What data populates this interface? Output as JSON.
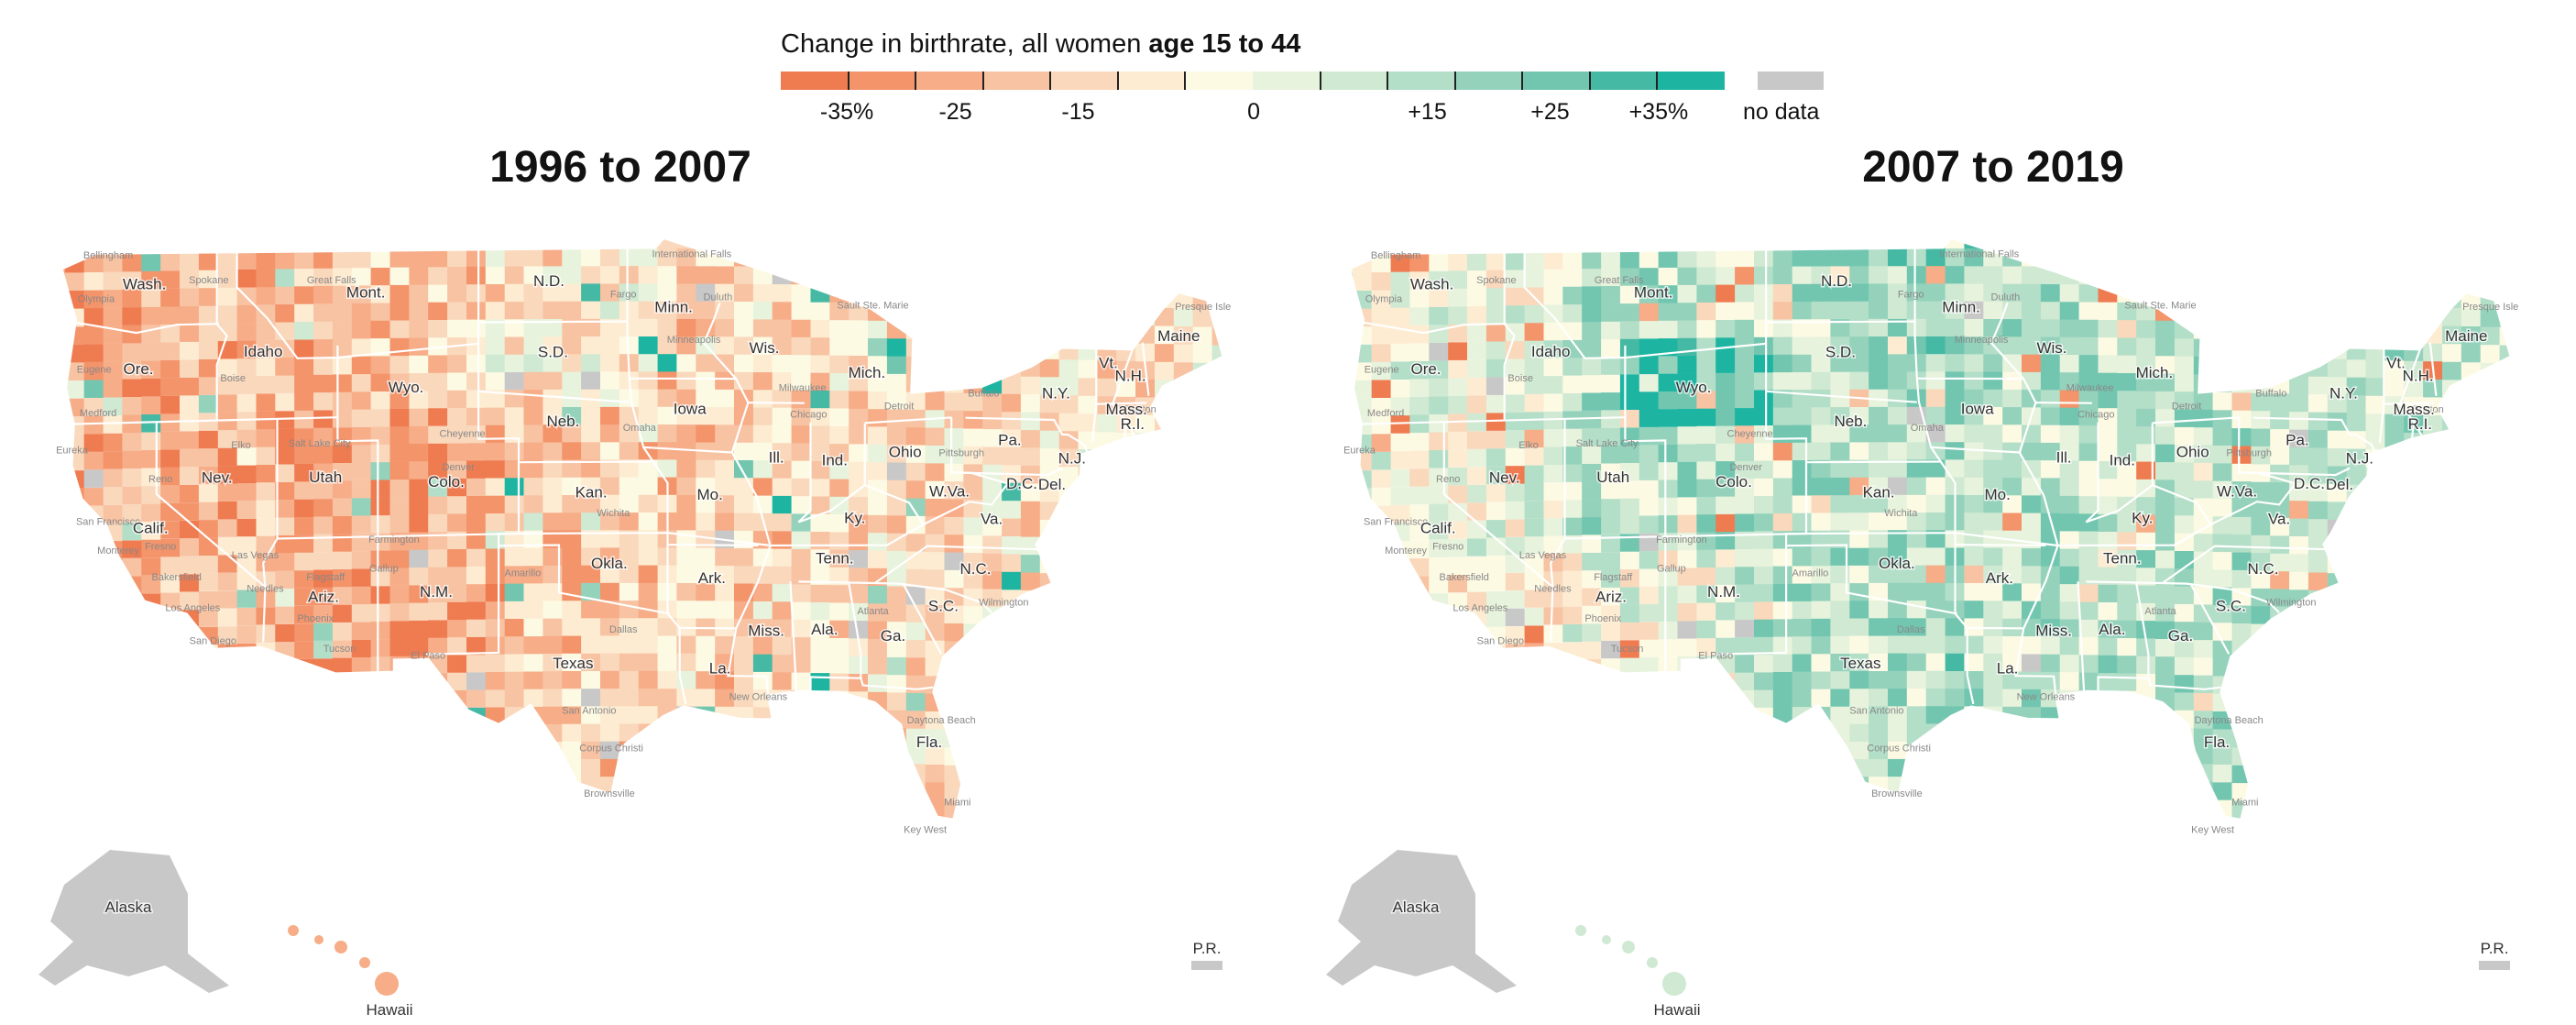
{
  "legend": {
    "title_prefix": "Change in birthrate, all women ",
    "title_bold": "age 15 to 44",
    "colors": [
      "#ef7b51",
      "#f3946b",
      "#f6ad88",
      "#f8c3a3",
      "#fad8bc",
      "#fdecd2",
      "#fdfae4",
      "#e7f3dc",
      "#cfe9d2",
      "#b3dec8",
      "#94d2bc",
      "#72c6b0",
      "#46b9a4",
      "#1db5a2"
    ],
    "tick_labels": [
      {
        "text": "-35%",
        "pos": 0.07
      },
      {
        "text": "-25",
        "pos": 0.185
      },
      {
        "text": "-15",
        "pos": 0.315
      },
      {
        "text": "0",
        "pos": 0.501
      },
      {
        "text": "+15",
        "pos": 0.685
      },
      {
        "text": "+25",
        "pos": 0.815
      },
      {
        "text": "+35%",
        "pos": 0.93
      }
    ],
    "nodata_label": "no data",
    "nodata_color": "#c8c8c8"
  },
  "panels": [
    {
      "title": "1996 to 2007",
      "color_bias": -1
    },
    {
      "title": "2007 to 2019",
      "color_bias": 1
    }
  ],
  "state_labels": [
    {
      "text": "Wash.",
      "lon": -120.6,
      "lat": 47.5
    },
    {
      "text": "Ore.",
      "lon": -120.9,
      "lat": 44.0
    },
    {
      "text": "Calif.",
      "lon": -120.3,
      "lat": 37.4
    },
    {
      "text": "Nev.",
      "lon": -117.0,
      "lat": 39.4
    },
    {
      "text": "Idaho",
      "lon": -114.7,
      "lat": 44.6
    },
    {
      "text": "Mont.",
      "lon": -109.6,
      "lat": 47.0
    },
    {
      "text": "Wyo.",
      "lon": -107.6,
      "lat": 43.0
    },
    {
      "text": "Utah",
      "lon": -111.6,
      "lat": 39.3
    },
    {
      "text": "Colo.",
      "lon": -105.6,
      "lat": 39.0
    },
    {
      "text": "Ariz.",
      "lon": -111.7,
      "lat": 34.3
    },
    {
      "text": "N.M.",
      "lon": -106.1,
      "lat": 34.4
    },
    {
      "text": "N.D.",
      "lon": -100.5,
      "lat": 47.4
    },
    {
      "text": "S.D.",
      "lon": -100.3,
      "lat": 44.4
    },
    {
      "text": "Neb.",
      "lon": -99.8,
      "lat": 41.5
    },
    {
      "text": "Kan.",
      "lon": -98.4,
      "lat": 38.5
    },
    {
      "text": "Okla.",
      "lon": -97.5,
      "lat": 35.5
    },
    {
      "text": "Texas",
      "lon": -99.3,
      "lat": 31.3
    },
    {
      "text": "Minn.",
      "lon": -94.3,
      "lat": 46.3
    },
    {
      "text": "Iowa",
      "lon": -93.5,
      "lat": 42.0
    },
    {
      "text": "Mo.",
      "lon": -92.5,
      "lat": 38.4
    },
    {
      "text": "Ark.",
      "lon": -92.4,
      "lat": 34.9
    },
    {
      "text": "La.",
      "lon": -92.0,
      "lat": 31.1
    },
    {
      "text": "Wis.",
      "lon": -89.8,
      "lat": 44.6
    },
    {
      "text": "Ill.",
      "lon": -89.2,
      "lat": 40.0
    },
    {
      "text": "Miss.",
      "lon": -89.7,
      "lat": 32.7
    },
    {
      "text": "Mich.",
      "lon": -84.7,
      "lat": 43.6
    },
    {
      "text": "Ind.",
      "lon": -86.3,
      "lat": 39.9
    },
    {
      "text": "Ky.",
      "lon": -85.3,
      "lat": 37.5
    },
    {
      "text": "Tenn.",
      "lon": -86.3,
      "lat": 35.8
    },
    {
      "text": "Ala.",
      "lon": -86.8,
      "lat": 32.8
    },
    {
      "text": "Ohio",
      "lon": -82.8,
      "lat": 40.3
    },
    {
      "text": "Ga.",
      "lon": -83.4,
      "lat": 32.6
    },
    {
      "text": "Fla.",
      "lon": -81.6,
      "lat": 28.2
    },
    {
      "text": "W.Va.",
      "lon": -80.6,
      "lat": 38.7
    },
    {
      "text": "Va.",
      "lon": -78.5,
      "lat": 37.6
    },
    {
      "text": "N.C.",
      "lon": -79.3,
      "lat": 35.5
    },
    {
      "text": "S.C.",
      "lon": -80.9,
      "lat": 33.9
    },
    {
      "text": "Pa.",
      "lon": -77.6,
      "lat": 40.9
    },
    {
      "text": "N.Y.",
      "lon": -75.3,
      "lat": 42.9
    },
    {
      "text": "Vt.",
      "lon": -72.7,
      "lat": 44.2
    },
    {
      "text": "N.H.",
      "lon": -71.6,
      "lat": 43.7
    },
    {
      "text": "Maine",
      "lon": -69.2,
      "lat": 45.4
    },
    {
      "text": "Mass.",
      "lon": -71.8,
      "lat": 42.3
    },
    {
      "text": "R.I.",
      "lon": -71.5,
      "lat": 41.7
    },
    {
      "text": "N.J.",
      "lon": -74.5,
      "lat": 40.2
    },
    {
      "text": "D.C.",
      "lon": -77.0,
      "lat": 39.1
    },
    {
      "text": "Del.",
      "lon": -75.5,
      "lat": 39.1
    }
  ],
  "inset_labels": {
    "alaska": "Alaska",
    "hawaii": "Hawaii",
    "pr": "P.R."
  },
  "city_labels": [
    {
      "text": "Bellingham",
      "lon": -122.4,
      "lat": 48.8
    },
    {
      "text": "Olympia",
      "lon": -123.0,
      "lat": 47.0
    },
    {
      "text": "Spokane",
      "lon": -117.4,
      "lat": 47.7
    },
    {
      "text": "Great Falls",
      "lon": -111.3,
      "lat": 47.6
    },
    {
      "text": "International Falls",
      "lon": -93.4,
      "lat": 48.6
    },
    {
      "text": "Fargo",
      "lon": -96.8,
      "lat": 46.9
    },
    {
      "text": "Duluth",
      "lon": -92.1,
      "lat": 46.8
    },
    {
      "text": "Sault Ste. Marie",
      "lon": -84.4,
      "lat": 46.5
    },
    {
      "text": "Presque Isle",
      "lon": -68.0,
      "lat": 46.7
    },
    {
      "text": "Eugene",
      "lon": -123.1,
      "lat": 44.1
    },
    {
      "text": "Medford",
      "lon": -122.9,
      "lat": 42.3
    },
    {
      "text": "Boise",
      "lon": -116.2,
      "lat": 43.6
    },
    {
      "text": "Eureka",
      "lon": -124.2,
      "lat": 40.8
    },
    {
      "text": "Reno",
      "lon": -119.8,
      "lat": 39.5
    },
    {
      "text": "Elko",
      "lon": -115.8,
      "lat": 40.8
    },
    {
      "text": "Salt Lake City",
      "lon": -111.9,
      "lat": 40.8
    },
    {
      "text": "Cheyenne",
      "lon": -104.8,
      "lat": 41.1
    },
    {
      "text": "Denver",
      "lon": -105.0,
      "lat": 39.7
    },
    {
      "text": "Omaha",
      "lon": -96.0,
      "lat": 41.3
    },
    {
      "text": "Minneapolis",
      "lon": -93.3,
      "lat": 45.0
    },
    {
      "text": "Milwaukee",
      "lon": -87.9,
      "lat": 43.0
    },
    {
      "text": "Chicago",
      "lon": -87.6,
      "lat": 41.9
    },
    {
      "text": "Detroit",
      "lon": -83.1,
      "lat": 42.3
    },
    {
      "text": "Buffalo",
      "lon": -78.9,
      "lat": 42.9
    },
    {
      "text": "Boston",
      "lon": -71.1,
      "lat": 42.4
    },
    {
      "text": "Pittsburgh",
      "lon": -80.0,
      "lat": 40.4
    },
    {
      "text": "San Francisco",
      "lon": -122.4,
      "lat": 37.8
    },
    {
      "text": "Fresno",
      "lon": -119.8,
      "lat": 36.7
    },
    {
      "text": "Monterey",
      "lon": -121.9,
      "lat": 36.6
    },
    {
      "text": "Bakersfield",
      "lon": -119.0,
      "lat": 35.4
    },
    {
      "text": "Las Vegas",
      "lon": -115.1,
      "lat": 36.2
    },
    {
      "text": "Los Angeles",
      "lon": -118.2,
      "lat": 34.1
    },
    {
      "text": "San Diego",
      "lon": -117.2,
      "lat": 32.7
    },
    {
      "text": "Phoenix",
      "lon": -112.1,
      "lat": 33.5
    },
    {
      "text": "Tucson",
      "lon": -110.9,
      "lat": 32.2
    },
    {
      "text": "Flagstaff",
      "lon": -111.6,
      "lat": 35.2
    },
    {
      "text": "Needles",
      "lon": -114.6,
      "lat": 34.8
    },
    {
      "text": "Farmington",
      "lon": -108.2,
      "lat": 36.7
    },
    {
      "text": "Gallup",
      "lon": -108.7,
      "lat": 35.5
    },
    {
      "text": "El Paso",
      "lon": -106.5,
      "lat": 31.8
    },
    {
      "text": "Amarillo",
      "lon": -101.8,
      "lat": 35.2
    },
    {
      "text": "Wichita",
      "lon": -97.3,
      "lat": 37.7
    },
    {
      "text": "Dallas",
      "lon": -96.8,
      "lat": 32.8
    },
    {
      "text": "San Antonio",
      "lon": -98.5,
      "lat": 29.4
    },
    {
      "text": "Corpus Christi",
      "lon": -97.4,
      "lat": 27.8
    },
    {
      "text": "Brownsville",
      "lon": -97.5,
      "lat": 25.9
    },
    {
      "text": "New Orleans",
      "lon": -90.1,
      "lat": 30.0
    },
    {
      "text": "Atlanta",
      "lon": -84.4,
      "lat": 33.7
    },
    {
      "text": "Wilmington",
      "lon": -77.9,
      "lat": 34.2
    },
    {
      "text": "Daytona Beach",
      "lon": -81.0,
      "lat": 29.2
    },
    {
      "text": "Miami",
      "lon": -80.2,
      "lat": 25.8
    },
    {
      "text": "Key West",
      "lon": -81.8,
      "lat": 24.6
    }
  ]
}
